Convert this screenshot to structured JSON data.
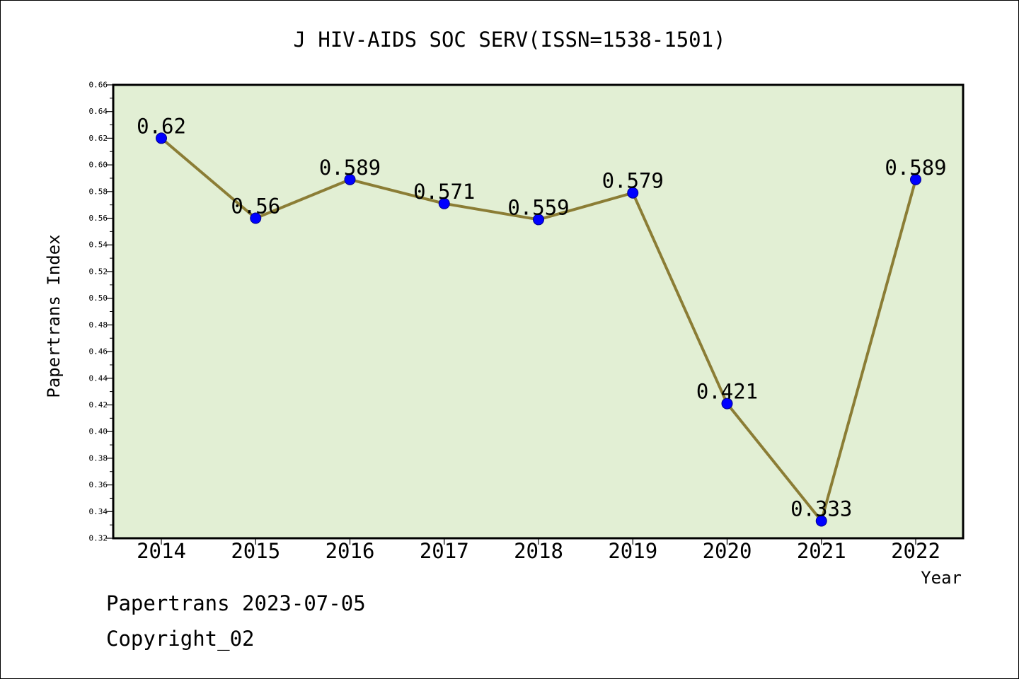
{
  "chart_data": {
    "type": "line",
    "title": "J HIV-AIDS SOC SERV(ISSN=1538-1501)",
    "xlabel": "Year",
    "ylabel": "Papertrans Index",
    "categories": [
      "2014",
      "2015",
      "2016",
      "2017",
      "2018",
      "2019",
      "2020",
      "2021",
      "2022"
    ],
    "values": [
      0.62,
      0.56,
      0.589,
      0.571,
      0.559,
      0.579,
      0.421,
      0.333,
      0.589
    ],
    "data_labels": [
      "0.62",
      "0.56",
      "0.589",
      "0.571",
      "0.559",
      "0.579",
      "0.421",
      "0.333",
      "0.589"
    ],
    "ylim": [
      0.32,
      0.66
    ],
    "y_ticks": [
      "0.32",
      "0.34",
      "0.36",
      "0.38",
      "0.40",
      "0.42",
      "0.44",
      "0.46",
      "0.48",
      "0.50",
      "0.52",
      "0.54",
      "0.56",
      "0.58",
      "0.60",
      "0.62",
      "0.64",
      "0.66"
    ],
    "grid": false,
    "legend": "none",
    "colors": {
      "plot_background": "#e2efd4",
      "line": "#8b7d35",
      "marker": "#0000ff"
    }
  },
  "footer": {
    "date_line": "Papertrans 2023-07-05",
    "copyright": "Copyright_02"
  }
}
